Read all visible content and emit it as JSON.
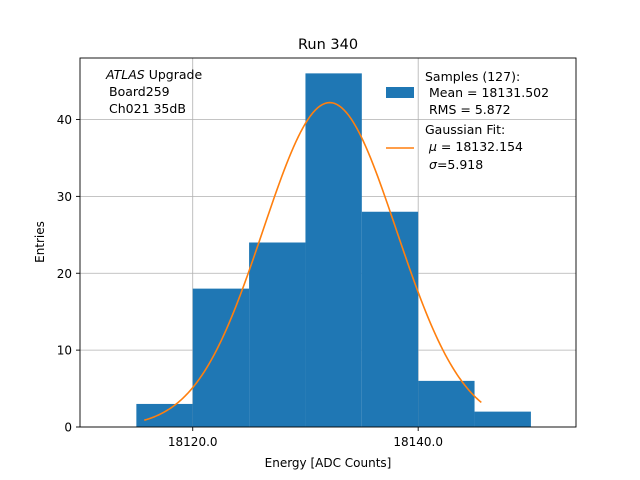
{
  "chart_data": {
    "type": "bar",
    "title": "Run 340",
    "xlabel": "Energy [ADC Counts]",
    "ylabel": "Entries",
    "xlim": [
      18110,
      18154
    ],
    "ylim": [
      0,
      48
    ],
    "grid": true,
    "histogram": {
      "bin_edges": [
        18115,
        18120,
        18125,
        18130,
        18135,
        18140,
        18145,
        18150
      ],
      "counts": [
        3,
        18,
        24,
        46,
        28,
        6,
        2
      ]
    },
    "fit_curve": {
      "type": "line",
      "amplitude": 42.2,
      "mu": 18132.154,
      "sigma": 5.918,
      "x_range": [
        18115.7,
        18145.6
      ]
    },
    "x_ticks": [
      18120.0,
      18140.0
    ],
    "x_tick_labels": [
      "18120.0",
      "18140.0"
    ],
    "y_ticks": [
      0,
      10,
      20,
      30,
      40
    ],
    "y_tick_labels": [
      "0",
      "10",
      "20",
      "30",
      "40"
    ],
    "annotation": {
      "line1_italic": "ATLAS",
      "line1_rest": " Upgrade",
      "line2": "Board259",
      "line3": "Ch021 35dB"
    },
    "legend": {
      "position": "top-right",
      "samples": {
        "title": "Samples (127):",
        "mean": "Mean = 18131.502",
        "rms": "RMS = 5.872"
      },
      "fit": {
        "title": "Gaussian Fit:",
        "mu_symbol": "μ",
        "mu_value": " = 18132.154",
        "sigma_symbol": "σ",
        "sigma_value": "=5.918"
      }
    },
    "colors": {
      "bars": "#1f77b4",
      "fit": "#ff7f0e",
      "grid": "#b0b0b0",
      "axes": "#000000"
    }
  }
}
